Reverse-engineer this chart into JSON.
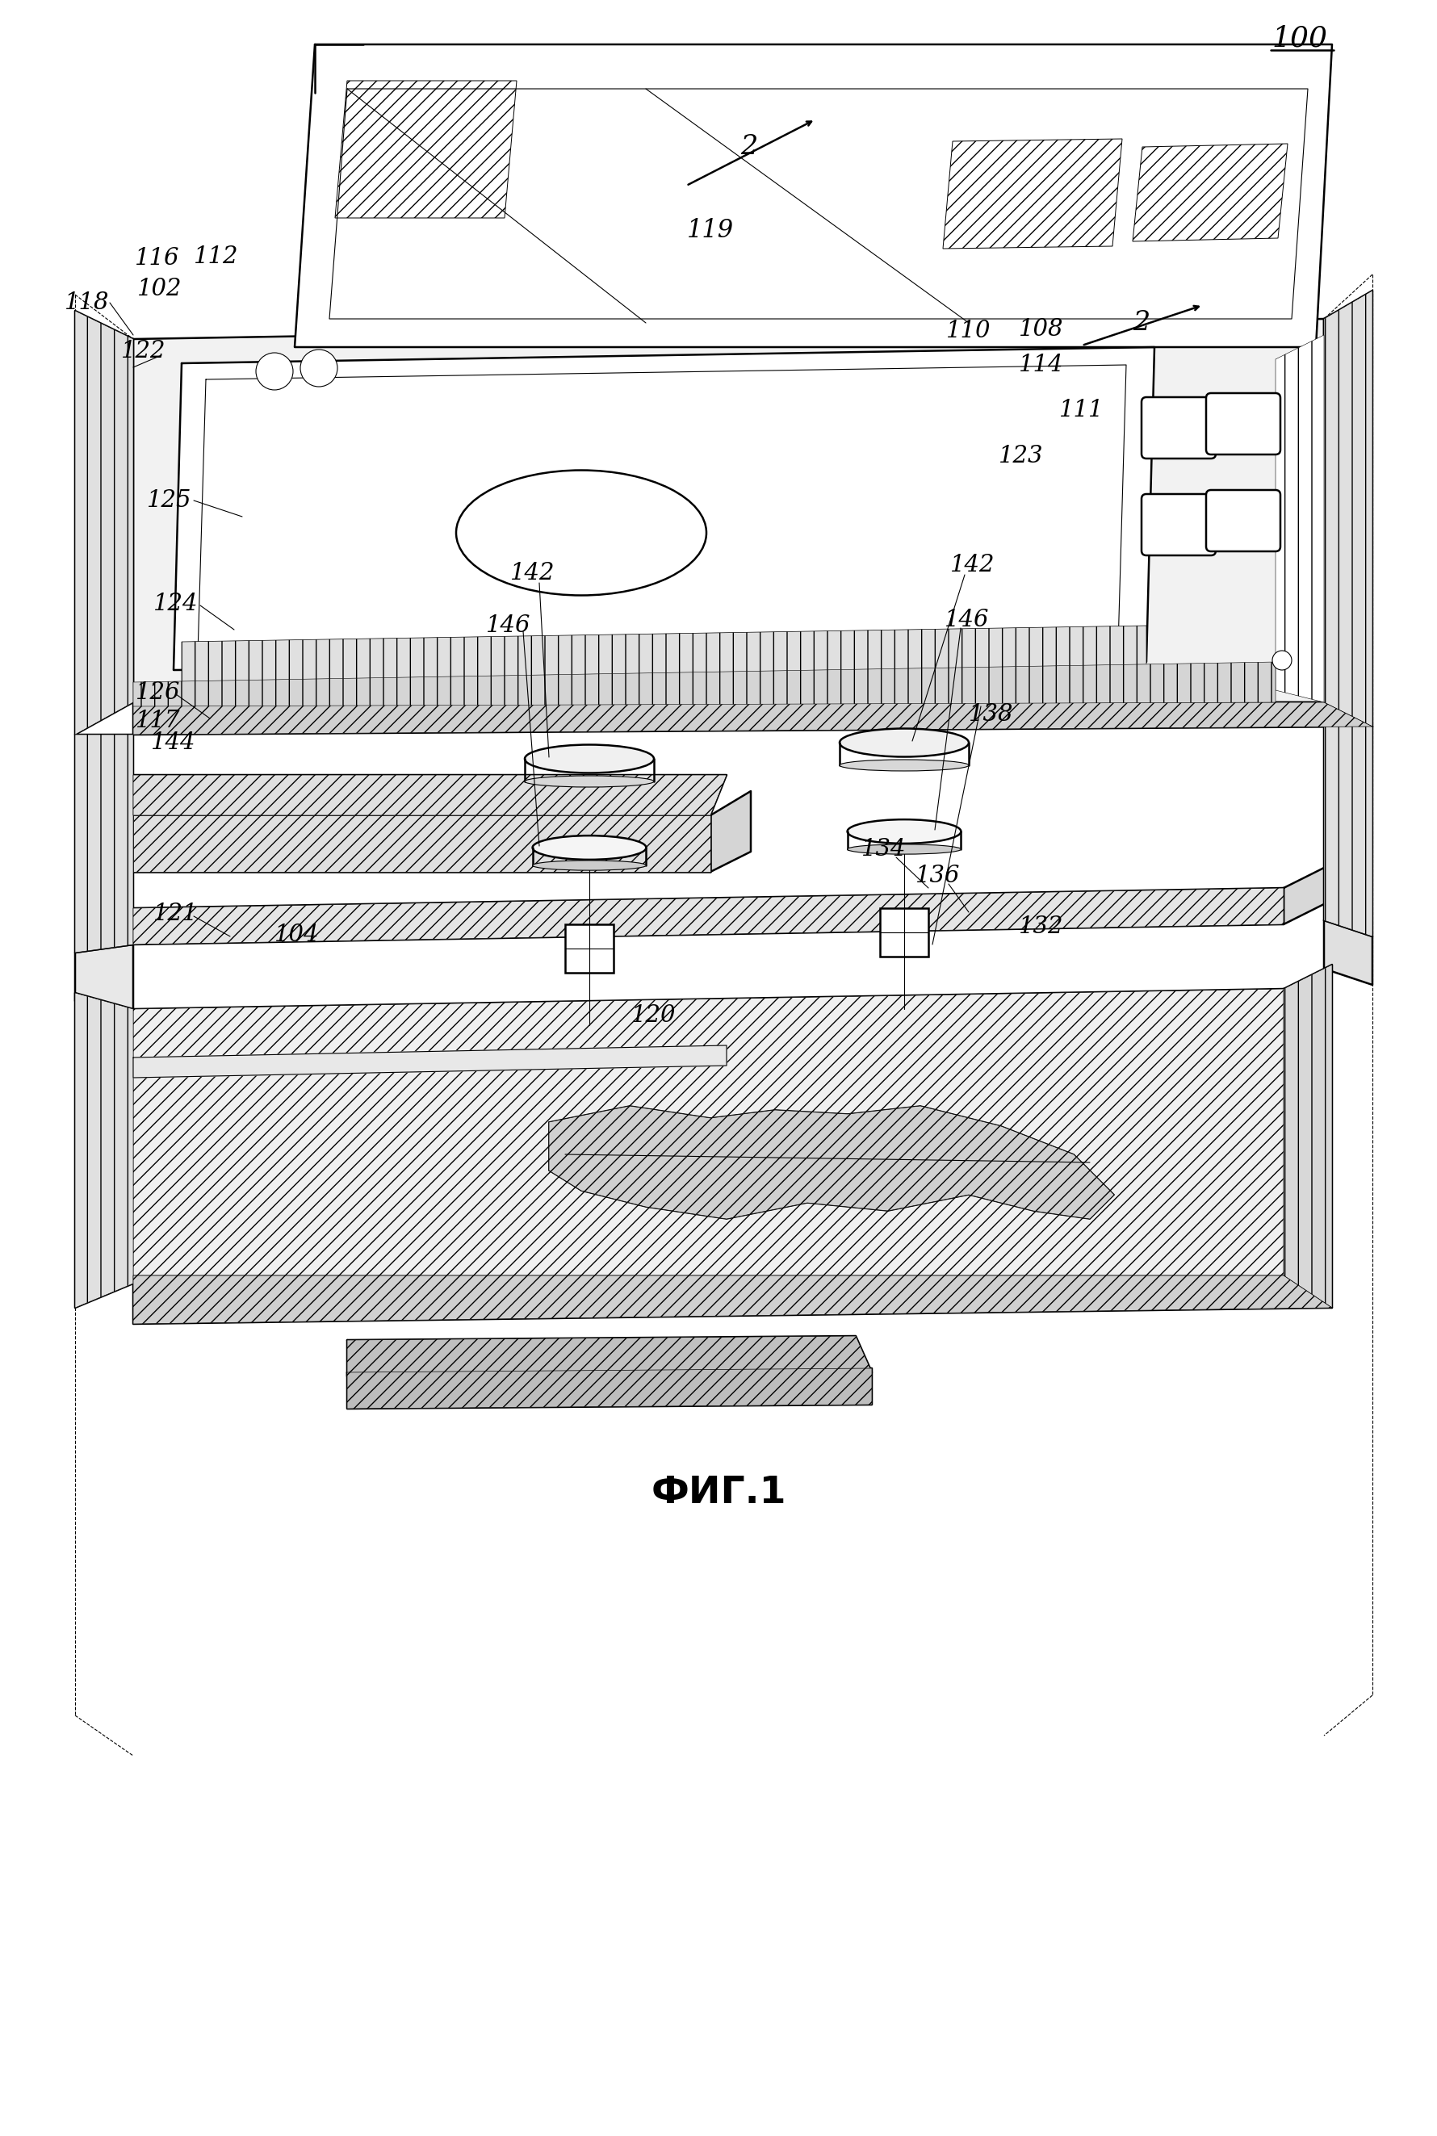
{
  "caption": "ФИГ.1",
  "ref_100": "100",
  "bg_color": "#ffffff",
  "fig_width": 17.8,
  "fig_height": 26.46
}
